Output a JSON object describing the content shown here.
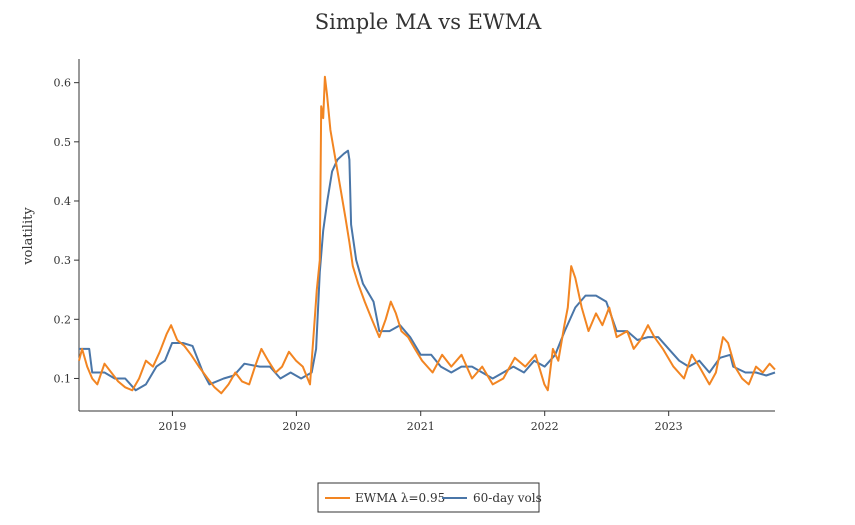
{
  "chart_data": {
    "type": "line",
    "title": "Simple MA vs EWMA",
    "xlabel": "",
    "ylabel": "volatility",
    "x_tick_labels": [
      "2019",
      "2020",
      "2021",
      "2022",
      "2023"
    ],
    "y_tick_labels": [
      "0.1",
      "0.2",
      "0.3",
      "0.4",
      "0.5",
      "0.6"
    ],
    "x_range": [
      "2018-04-01",
      "2023-11-10"
    ],
    "ylim": [
      0.045,
      0.64
    ],
    "grid": false,
    "legend_position": "bottom-center",
    "colors": {
      "ewma": "#f28522",
      "sma": "#4a76a8"
    },
    "series": [
      {
        "name": "EWMA λ=0.95",
        "color": "#f28522",
        "points": [
          [
            "2018-04-01",
            0.13
          ],
          [
            "2018-04-10",
            0.15
          ],
          [
            "2018-04-25",
            0.12
          ],
          [
            "2018-05-10",
            0.1
          ],
          [
            "2018-05-25",
            0.09
          ],
          [
            "2018-06-15",
            0.125
          ],
          [
            "2018-07-05",
            0.11
          ],
          [
            "2018-07-25",
            0.095
          ],
          [
            "2018-08-15",
            0.085
          ],
          [
            "2018-09-05",
            0.08
          ],
          [
            "2018-09-25",
            0.1
          ],
          [
            "2018-10-15",
            0.13
          ],
          [
            "2018-11-05",
            0.12
          ],
          [
            "2018-11-25",
            0.145
          ],
          [
            "2018-12-15",
            0.175
          ],
          [
            "2018-12-28",
            0.19
          ],
          [
            "2019-01-15",
            0.165
          ],
          [
            "2019-02-05",
            0.155
          ],
          [
            "2019-02-25",
            0.14
          ],
          [
            "2019-03-20",
            0.12
          ],
          [
            "2019-04-15",
            0.1
          ],
          [
            "2019-05-05",
            0.085
          ],
          [
            "2019-05-25",
            0.075
          ],
          [
            "2019-06-15",
            0.09
          ],
          [
            "2019-07-05",
            0.11
          ],
          [
            "2019-07-25",
            0.095
          ],
          [
            "2019-08-15",
            0.09
          ],
          [
            "2019-09-01",
            0.12
          ],
          [
            "2019-09-20",
            0.15
          ],
          [
            "2019-10-10",
            0.13
          ],
          [
            "2019-11-01",
            0.11
          ],
          [
            "2019-11-20",
            0.12
          ],
          [
            "2019-12-10",
            0.145
          ],
          [
            "2019-12-31",
            0.13
          ],
          [
            "2020-01-20",
            0.12
          ],
          [
            "2020-02-10",
            0.09
          ],
          [
            "2020-02-24",
            0.2
          ],
          [
            "2020-03-01",
            0.25
          ],
          [
            "2020-03-10",
            0.3
          ],
          [
            "2020-03-14",
            0.56
          ],
          [
            "2020-03-20",
            0.54
          ],
          [
            "2020-03-25",
            0.61
          ],
          [
            "2020-03-31",
            0.58
          ],
          [
            "2020-04-10",
            0.52
          ],
          [
            "2020-04-25",
            0.47
          ],
          [
            "2020-05-10",
            0.42
          ],
          [
            "2020-05-25",
            0.37
          ],
          [
            "2020-06-05",
            0.33
          ],
          [
            "2020-06-15",
            0.29
          ],
          [
            "2020-07-01",
            0.26
          ],
          [
            "2020-07-20",
            0.23
          ],
          [
            "2020-08-10",
            0.2
          ],
          [
            "2020-09-01",
            0.17
          ],
          [
            "2020-09-20",
            0.2
          ],
          [
            "2020-10-05",
            0.23
          ],
          [
            "2020-10-20",
            0.21
          ],
          [
            "2020-11-05",
            0.18
          ],
          [
            "2020-11-25",
            0.17
          ],
          [
            "2020-12-15",
            0.15
          ],
          [
            "2021-01-05",
            0.13
          ],
          [
            "2021-02-05",
            0.11
          ],
          [
            "2021-03-05",
            0.14
          ],
          [
            "2021-04-01",
            0.12
          ],
          [
            "2021-05-01",
            0.14
          ],
          [
            "2021-06-01",
            0.1
          ],
          [
            "2021-07-01",
            0.12
          ],
          [
            "2021-08-01",
            0.09
          ],
          [
            "2021-09-01",
            0.1
          ],
          [
            "2021-10-05",
            0.135
          ],
          [
            "2021-11-05",
            0.12
          ],
          [
            "2021-12-05",
            0.14
          ],
          [
            "2021-12-31",
            0.09
          ],
          [
            "2022-01-10",
            0.08
          ],
          [
            "2022-01-25",
            0.15
          ],
          [
            "2022-02-10",
            0.13
          ],
          [
            "2022-02-28",
            0.19
          ],
          [
            "2022-03-10",
            0.22
          ],
          [
            "2022-03-20",
            0.29
          ],
          [
            "2022-04-01",
            0.27
          ],
          [
            "2022-04-20",
            0.22
          ],
          [
            "2022-05-10",
            0.18
          ],
          [
            "2022-06-01",
            0.21
          ],
          [
            "2022-06-20",
            0.19
          ],
          [
            "2022-07-10",
            0.22
          ],
          [
            "2022-08-01",
            0.17
          ],
          [
            "2022-09-01",
            0.18
          ],
          [
            "2022-09-20",
            0.15
          ],
          [
            "2022-10-10",
            0.165
          ],
          [
            "2022-11-01",
            0.19
          ],
          [
            "2022-11-20",
            0.17
          ],
          [
            "2022-12-15",
            0.15
          ],
          [
            "2023-01-15",
            0.12
          ],
          [
            "2023-02-15",
            0.1
          ],
          [
            "2023-03-10",
            0.14
          ],
          [
            "2023-04-01",
            0.12
          ],
          [
            "2023-05-01",
            0.09
          ],
          [
            "2023-05-20",
            0.11
          ],
          [
            "2023-06-10",
            0.17
          ],
          [
            "2023-06-25",
            0.16
          ],
          [
            "2023-07-15",
            0.12
          ],
          [
            "2023-08-05",
            0.1
          ],
          [
            "2023-08-25",
            0.09
          ],
          [
            "2023-09-15",
            0.12
          ],
          [
            "2023-10-05",
            0.11
          ],
          [
            "2023-10-25",
            0.125
          ],
          [
            "2023-11-10",
            0.115
          ]
        ]
      },
      {
        "name": "60-day vols",
        "color": "#4a76a8",
        "points": [
          [
            "2018-04-01",
            0.15
          ],
          [
            "2018-05-01",
            0.15
          ],
          [
            "2018-05-10",
            0.11
          ],
          [
            "2018-06-15",
            0.11
          ],
          [
            "2018-07-15",
            0.1
          ],
          [
            "2018-08-15",
            0.1
          ],
          [
            "2018-09-15",
            0.08
          ],
          [
            "2018-10-15",
            0.09
          ],
          [
            "2018-11-15",
            0.12
          ],
          [
            "2018-12-10",
            0.13
          ],
          [
            "2018-12-31",
            0.16
          ],
          [
            "2019-02-01",
            0.16
          ],
          [
            "2019-03-01",
            0.155
          ],
          [
            "2019-04-01",
            0.11
          ],
          [
            "2019-04-20",
            0.09
          ],
          [
            "2019-06-01",
            0.1
          ],
          [
            "2019-07-01",
            0.105
          ],
          [
            "2019-08-01",
            0.125
          ],
          [
            "2019-09-15",
            0.12
          ],
          [
            "2019-10-15",
            0.12
          ],
          [
            "2019-11-15",
            0.1
          ],
          [
            "2019-12-15",
            0.11
          ],
          [
            "2020-01-15",
            0.1
          ],
          [
            "2020-02-15",
            0.11
          ],
          [
            "2020-02-28",
            0.15
          ],
          [
            "2020-03-10",
            0.28
          ],
          [
            "2020-03-20",
            0.35
          ],
          [
            "2020-04-01",
            0.4
          ],
          [
            "2020-04-15",
            0.45
          ],
          [
            "2020-05-01",
            0.47
          ],
          [
            "2020-05-20",
            0.48
          ],
          [
            "2020-06-01",
            0.485
          ],
          [
            "2020-06-05",
            0.47
          ],
          [
            "2020-06-10",
            0.36
          ],
          [
            "2020-06-25",
            0.3
          ],
          [
            "2020-07-15",
            0.26
          ],
          [
            "2020-08-15",
            0.23
          ],
          [
            "2020-09-01",
            0.18
          ],
          [
            "2020-10-01",
            0.18
          ],
          [
            "2020-11-01",
            0.19
          ],
          [
            "2020-12-01",
            0.17
          ],
          [
            "2021-01-01",
            0.14
          ],
          [
            "2021-02-01",
            0.14
          ],
          [
            "2021-03-01",
            0.12
          ],
          [
            "2021-04-01",
            0.11
          ],
          [
            "2021-05-01",
            0.12
          ],
          [
            "2021-06-01",
            0.12
          ],
          [
            "2021-07-01",
            0.11
          ],
          [
            "2021-08-01",
            0.1
          ],
          [
            "2021-09-01",
            0.11
          ],
          [
            "2021-10-01",
            0.12
          ],
          [
            "2021-11-01",
            0.11
          ],
          [
            "2021-12-01",
            0.13
          ],
          [
            "2022-01-01",
            0.12
          ],
          [
            "2022-02-01",
            0.14
          ],
          [
            "2022-03-01",
            0.18
          ],
          [
            "2022-04-01",
            0.22
          ],
          [
            "2022-05-01",
            0.24
          ],
          [
            "2022-06-01",
            0.24
          ],
          [
            "2022-07-01",
            0.23
          ],
          [
            "2022-08-01",
            0.18
          ],
          [
            "2022-09-01",
            0.18
          ],
          [
            "2022-10-01",
            0.165
          ],
          [
            "2022-11-01",
            0.17
          ],
          [
            "2022-12-01",
            0.17
          ],
          [
            "2023-01-01",
            0.15
          ],
          [
            "2023-02-01",
            0.13
          ],
          [
            "2023-03-01",
            0.12
          ],
          [
            "2023-04-01",
            0.13
          ],
          [
            "2023-05-01",
            0.11
          ],
          [
            "2023-06-01",
            0.135
          ],
          [
            "2023-07-01",
            0.14
          ],
          [
            "2023-07-10",
            0.12
          ],
          [
            "2023-08-15",
            0.11
          ],
          [
            "2023-09-15",
            0.11
          ],
          [
            "2023-10-15",
            0.105
          ],
          [
            "2023-11-10",
            0.11
          ]
        ]
      }
    ]
  }
}
